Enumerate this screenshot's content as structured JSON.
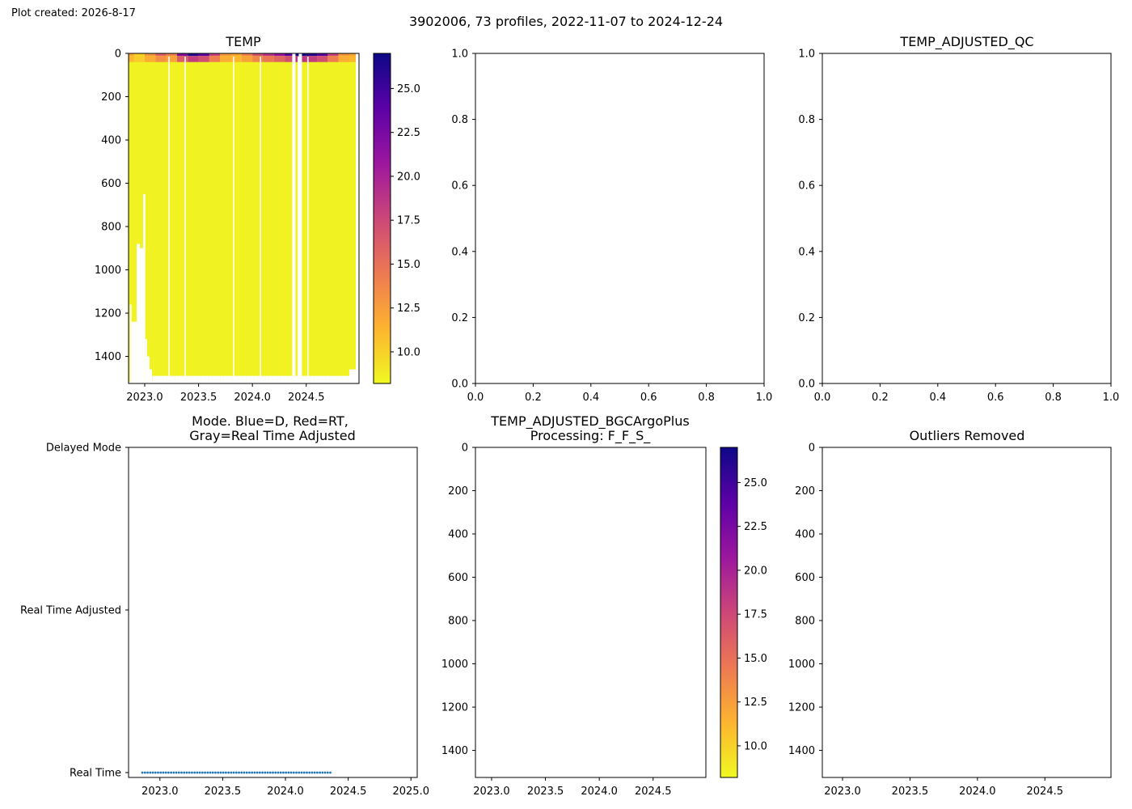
{
  "figure": {
    "created_label": "Plot created: 2026-8-17",
    "suptitle": "3902006, 73 profiles, 2022-11-07 to 2024-12-24",
    "colors": {
      "cmap_stops": [
        "#f0f921",
        "#fdb42f",
        "#ed7953",
        "#cc4778",
        "#9c179e",
        "#5c01a6",
        "#0d0887"
      ],
      "mode_points": "#1f77b4",
      "axes": "#000000"
    }
  },
  "chart_data": [
    {
      "id": "temp",
      "type": "heatmap",
      "title": "TEMP",
      "x_ticks": [
        "2023.0",
        "2023.5",
        "2024.0",
        "2024.5"
      ],
      "x_tick_values": [
        2023.0,
        2023.5,
        2024.0,
        2024.5
      ],
      "xlim": [
        2022.85,
        2024.99
      ],
      "y_ticks": [
        "0",
        "200",
        "400",
        "600",
        "800",
        "1000",
        "1200",
        "1400"
      ],
      "y_tick_values": [
        0,
        200,
        400,
        600,
        800,
        1000,
        1200,
        1400
      ],
      "ylim": [
        1525,
        0
      ],
      "colorbar": {
        "ticks": [
          "10.0",
          "12.5",
          "15.0",
          "17.5",
          "20.0",
          "22.5",
          "25.0"
        ],
        "tick_values": [
          10.0,
          12.5,
          15.0,
          17.5,
          20.0,
          22.5,
          25.0
        ],
        "range": [
          8.2,
          27.0
        ]
      },
      "profile_count": 73,
      "date_range": [
        "2022-11-07",
        "2024-12-24"
      ],
      "bulk_value": 8.5,
      "surface_layer": {
        "depth_m": [
          0,
          40
        ],
        "values_by_time": [
          [
            2022.86,
            12
          ],
          [
            2022.95,
            10
          ],
          [
            2023.05,
            13
          ],
          [
            2023.15,
            16
          ],
          [
            2023.25,
            14
          ],
          [
            2023.35,
            22
          ],
          [
            2023.45,
            26
          ],
          [
            2023.55,
            24
          ],
          [
            2023.65,
            18
          ],
          [
            2023.75,
            13
          ],
          [
            2023.85,
            12
          ],
          [
            2023.95,
            14
          ],
          [
            2024.05,
            17
          ],
          [
            2024.15,
            19
          ],
          [
            2024.25,
            21
          ],
          [
            2024.35,
            24
          ],
          [
            2024.45,
            27
          ],
          [
            2024.55,
            26
          ],
          [
            2024.65,
            24
          ],
          [
            2024.75,
            18
          ],
          [
            2024.85,
            13
          ],
          [
            2024.95,
            12
          ]
        ]
      },
      "data_gaps": [
        {
          "t0": 2022.862,
          "t1": 2022.878,
          "max_depth": 1160
        },
        {
          "t0": 2022.878,
          "t1": 2022.925,
          "max_depth": 1240
        },
        {
          "t0": 2022.925,
          "t1": 2022.955,
          "max_depth": 880
        },
        {
          "t0": 2022.955,
          "t1": 2022.985,
          "max_depth": 900
        },
        {
          "t0": 2022.985,
          "t1": 2023.005,
          "max_depth": 650
        },
        {
          "t0": 2023.005,
          "t1": 2023.022,
          "max_depth": 1320
        },
        {
          "t0": 2023.022,
          "t1": 2023.045,
          "max_depth": 1400
        },
        {
          "t0": 2023.045,
          "t1": 2023.068,
          "max_depth": 1460
        },
        {
          "t0": 2024.37,
          "t1": 2024.4,
          "max_depth": 0
        },
        {
          "t0": 2024.43,
          "t1": 2024.46,
          "max_depth": 0
        },
        {
          "t0": 2024.9,
          "t1": 2024.99,
          "max_depth": 1460
        },
        {
          "t0": 2024.96,
          "t1": 2024.99,
          "max_depth": 0
        }
      ]
    },
    {
      "id": "empty_top_middle",
      "type": "scatter",
      "title": "",
      "x_ticks": [
        "0.0",
        "0.2",
        "0.4",
        "0.6",
        "0.8",
        "1.0"
      ],
      "y_ticks": [
        "0.0",
        "0.2",
        "0.4",
        "0.6",
        "0.8",
        "1.0"
      ],
      "xlim": [
        0,
        1
      ],
      "ylim": [
        0,
        1
      ],
      "values": []
    },
    {
      "id": "temp_adjusted_qc",
      "type": "scatter",
      "title": "TEMP_ADJUSTED_QC",
      "x_ticks": [
        "0.0",
        "0.2",
        "0.4",
        "0.6",
        "0.8",
        "1.0"
      ],
      "y_ticks": [
        "0.0",
        "0.2",
        "0.4",
        "0.6",
        "0.8",
        "1.0"
      ],
      "xlim": [
        0,
        1
      ],
      "ylim": [
        0,
        1
      ],
      "values": []
    },
    {
      "id": "mode",
      "type": "scatter",
      "title_line1": "Mode. Blue=D, Red=RT,",
      "title_line2": "Gray=Real Time Adjusted",
      "x_ticks": [
        "2023.0",
        "2023.5",
        "2024.0",
        "2024.5",
        "2025.0"
      ],
      "x_tick_values": [
        2023.0,
        2023.5,
        2024.0,
        2024.5,
        2025.0
      ],
      "xlim": [
        2022.75,
        2025.05
      ],
      "y_ticks": [
        "Delayed Mode",
        "Real Time Adjusted",
        "Real Time"
      ],
      "y_tick_values": [
        2,
        1,
        0
      ],
      "ylim": [
        -0.03,
        2
      ],
      "mode_value": 0,
      "mode_start": 2022.86,
      "mode_interval": 0.0208,
      "mode_count": 73,
      "mode_skip_between": [
        [
          2024.38,
          2024.47
        ],
        [
          2024.52,
          2024.58
        ]
      ]
    },
    {
      "id": "temp_adjusted_bgc",
      "type": "heatmap",
      "title_line1": "TEMP_ADJUSTED_BGCArgoPlus",
      "title_line2": "Processing: F_F_S_",
      "x_ticks": [
        "2023.0",
        "2023.5",
        "2024.0",
        "2024.5"
      ],
      "x_tick_values": [
        2023.0,
        2023.5,
        2024.0,
        2024.5
      ],
      "xlim": [
        2022.85,
        2024.99
      ],
      "y_ticks": [
        "0",
        "200",
        "400",
        "600",
        "800",
        "1000",
        "1200",
        "1400"
      ],
      "y_tick_values": [
        0,
        200,
        400,
        600,
        800,
        1000,
        1200,
        1400
      ],
      "ylim": [
        1525,
        0
      ],
      "colorbar": {
        "ticks": [
          "10.0",
          "12.5",
          "15.0",
          "17.5",
          "20.0",
          "22.5",
          "25.0"
        ],
        "tick_values": [
          10.0,
          12.5,
          15.0,
          17.5,
          20.0,
          22.5,
          25.0
        ],
        "range": [
          8.2,
          27.0
        ]
      },
      "values": []
    },
    {
      "id": "outliers_removed",
      "type": "heatmap",
      "title": "Outliers Removed",
      "x_ticks": [
        "2023.0",
        "2023.5",
        "2024.0",
        "2024.5"
      ],
      "x_tick_values": [
        2023.0,
        2023.5,
        2024.0,
        2024.5
      ],
      "xlim": [
        2022.85,
        2024.99
      ],
      "y_ticks": [
        "0",
        "200",
        "400",
        "600",
        "800",
        "1000",
        "1200",
        "1400"
      ],
      "y_tick_values": [
        0,
        200,
        400,
        600,
        800,
        1000,
        1200,
        1400
      ],
      "ylim": [
        1525,
        0
      ],
      "values": []
    }
  ]
}
